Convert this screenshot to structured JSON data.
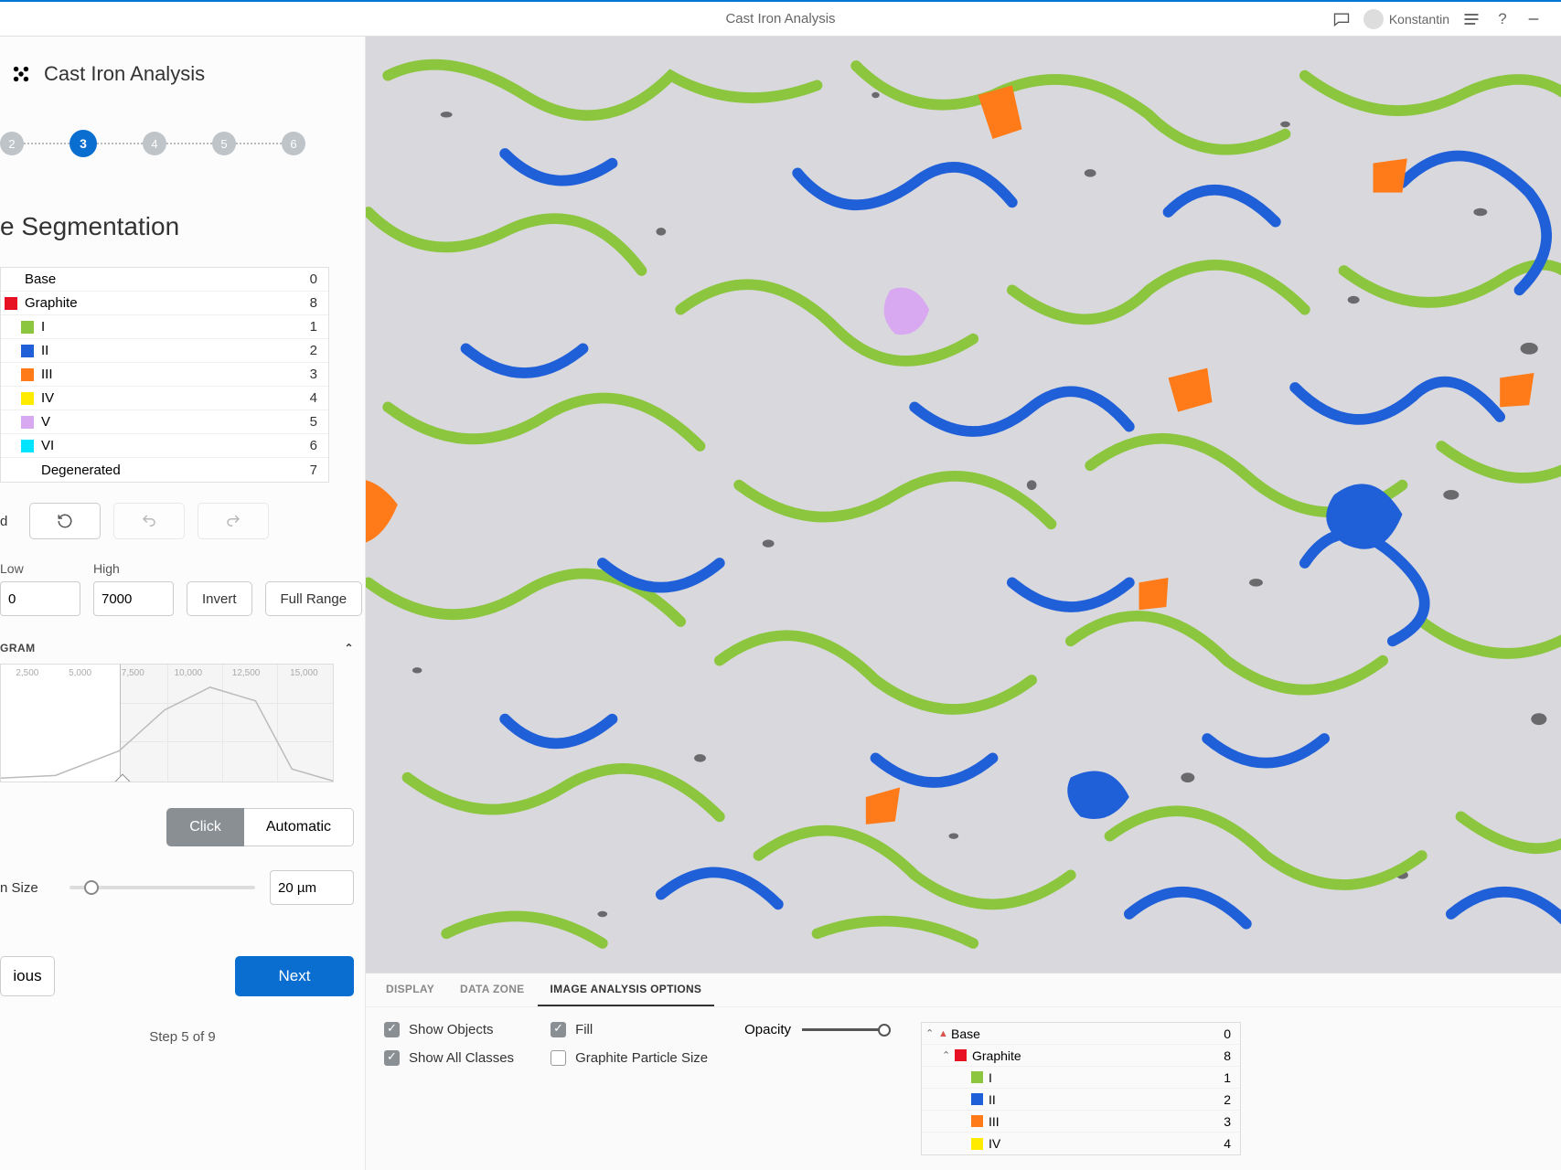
{
  "titlebar": {
    "title": "Cast Iron Analysis",
    "user": "Konstantin"
  },
  "sidebar": {
    "title": "Cast Iron Analysis",
    "stepper": {
      "steps": [
        "2",
        "3",
        "4",
        "5",
        "6"
      ],
      "active_index": 1
    },
    "section_title": "e Segmentation",
    "seg_table": {
      "rows": [
        {
          "indent": 0,
          "swatch": null,
          "label": "Base",
          "num": "0"
        },
        {
          "indent": 0,
          "swatch": "#e81123",
          "label": "Graphite",
          "num": "8"
        },
        {
          "indent": 1,
          "swatch": "#8cc63f",
          "label": "I",
          "num": "1"
        },
        {
          "indent": 1,
          "swatch": "#1f5fd8",
          "label": "II",
          "num": "2"
        },
        {
          "indent": 1,
          "swatch": "#ff7b1a",
          "label": "III",
          "num": "3"
        },
        {
          "indent": 1,
          "swatch": "#ffeb00",
          "label": "IV",
          "num": "4"
        },
        {
          "indent": 1,
          "swatch": "#d8a8f0",
          "label": "V",
          "num": "5"
        },
        {
          "indent": 1,
          "swatch": "#00e5ff",
          "label": "VI",
          "num": "6"
        },
        {
          "indent": 1,
          "swatch": null,
          "label": "Degenerated",
          "num": "7"
        }
      ]
    },
    "d_label": "d",
    "low_label": "Low",
    "low_value": "0",
    "high_label": "High",
    "high_value": "7000",
    "invert_label": "Invert",
    "fullrange_label": "Full Range",
    "histogram_label": "GRAM",
    "histogram": {
      "ticks": [
        "2,500",
        "5,000",
        "7,500",
        "10,000",
        "12,500",
        "15,000"
      ]
    },
    "mode": {
      "click": "Click",
      "auto": "Automatic"
    },
    "size_label": "n Size",
    "size_value": "20 µm",
    "prev_label": "ious",
    "next_label": "Next",
    "step_counter": "Step 5 of 9"
  },
  "tabs": {
    "t0": "DISPLAY",
    "t1": "DATA ZONE",
    "t2": "IMAGE ANALYSIS OPTIONS",
    "active": 2
  },
  "options": {
    "show_objects": "Show Objects",
    "show_all": "Show All Classes",
    "fill": "Fill",
    "particle_size": "Graphite Particle Size",
    "opacity": "Opacity"
  },
  "mini_table": {
    "rows": [
      {
        "indent": 0,
        "caret": "^",
        "red_caret": true,
        "swatch": null,
        "label": "Base",
        "num": "0"
      },
      {
        "indent": 1,
        "caret": "^",
        "swatch": "#e81123",
        "label": "Graphite",
        "num": "8"
      },
      {
        "indent": 2,
        "swatch": "#8cc63f",
        "label": "I",
        "num": "1"
      },
      {
        "indent": 2,
        "swatch": "#1f5fd8",
        "label": "II",
        "num": "2"
      },
      {
        "indent": 2,
        "swatch": "#ff7b1a",
        "label": "III",
        "num": "3"
      },
      {
        "indent": 2,
        "swatch": "#ffeb00",
        "label": "IV",
        "num": "4"
      }
    ]
  },
  "colors": {
    "grain_green": "#8cc63f",
    "grain_blue": "#1f5fd8",
    "grain_orange": "#ff7b1a",
    "grain_violet": "#d8a8f0",
    "bg": "#d9d8dd"
  }
}
